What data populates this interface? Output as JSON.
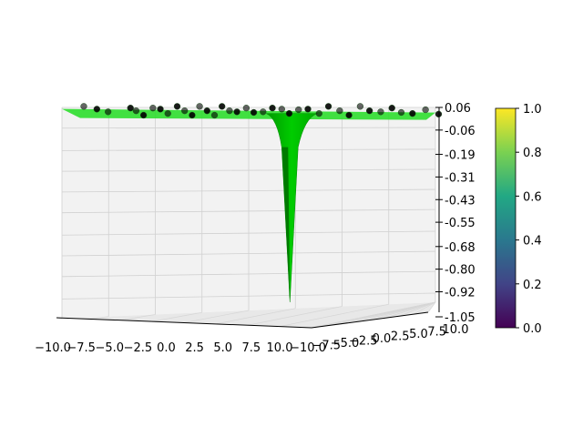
{
  "chart_data": {
    "type": "surface3d",
    "title": "",
    "xlabel": "",
    "ylabel": "",
    "zlabel": "",
    "x_range": [
      -10,
      10
    ],
    "y_range": [
      -10,
      10
    ],
    "z_range": [
      -1.05,
      0.06
    ],
    "x_ticks": [
      "−10.0",
      "−7.5",
      "−5.0",
      "−2.5",
      "0.0",
      "2.5",
      "5.0",
      "7.5",
      "10.0"
    ],
    "y_ticks": [
      "−10.0",
      "−7.5",
      "−5.0",
      "−2.5",
      "0.0",
      "2.5",
      "5.0",
      "7.5",
      "10.0"
    ],
    "z_ticks": [
      "0.06",
      "-0.06",
      "-0.19",
      "-0.31",
      "-0.43",
      "-0.55",
      "-0.68",
      "-0.80",
      "-0.92",
      "-1.05"
    ],
    "surface_color": "#00cc00",
    "scatter_color": "#000000",
    "grid": true,
    "surface_minimum": {
      "x": 2.5,
      "y": 0.0,
      "z": -1.05
    },
    "scatter_points": [
      {
        "x": -10.0,
        "z": 0.05
      },
      {
        "x": -9.3,
        "z": 0.05
      },
      {
        "x": -8.7,
        "z": 0.05
      },
      {
        "x": -7.5,
        "z": 0.04
      },
      {
        "x": -7.2,
        "z": 0.04
      },
      {
        "x": -6.8,
        "z": 0.03
      },
      {
        "x": -6.3,
        "z": 0.04
      },
      {
        "x": -5.9,
        "z": 0.05
      },
      {
        "x": -5.5,
        "z": 0.04
      },
      {
        "x": -5.0,
        "z": 0.05
      },
      {
        "x": -4.6,
        "z": 0.04
      },
      {
        "x": -4.2,
        "z": 0.03
      },
      {
        "x": -3.8,
        "z": 0.05
      },
      {
        "x": -3.4,
        "z": 0.04
      },
      {
        "x": -3.0,
        "z": 0.03
      },
      {
        "x": -2.6,
        "z": 0.05
      },
      {
        "x": -2.2,
        "z": 0.04
      },
      {
        "x": -1.8,
        "z": 0.05
      },
      {
        "x": -1.3,
        "z": 0.04
      },
      {
        "x": -0.9,
        "z": 0.03
      },
      {
        "x": -0.4,
        "z": 0.05
      },
      {
        "x": 0.1,
        "z": 0.04
      },
      {
        "x": 0.6,
        "z": 0.05
      },
      {
        "x": 1.0,
        "z": 0.04
      },
      {
        "x": 1.5,
        "z": 0.03
      },
      {
        "x": 2.0,
        "z": 0.05
      },
      {
        "x": 2.6,
        "z": 0.04
      },
      {
        "x": 3.1,
        "z": 0.05
      },
      {
        "x": 3.7,
        "z": 0.04
      },
      {
        "x": 4.2,
        "z": 0.03
      },
      {
        "x": 4.8,
        "z": 0.05
      },
      {
        "x": 5.3,
        "z": 0.04
      },
      {
        "x": 5.9,
        "z": 0.05
      },
      {
        "x": 6.5,
        "z": 0.04
      },
      {
        "x": 7.0,
        "z": 0.03
      },
      {
        "x": 7.6,
        "z": 0.04
      },
      {
        "x": 8.3,
        "z": 0.03
      },
      {
        "x": 9.0,
        "z": 0.02
      }
    ],
    "colorbar": {
      "colormap": "viridis",
      "range": [
        0.0,
        1.0
      ],
      "ticks": [
        "0.0",
        "0.2",
        "0.4",
        "0.6",
        "0.8",
        "1.0"
      ],
      "colors": [
        "#440154",
        "#414487",
        "#2a788e",
        "#22a884",
        "#7ad151",
        "#fde725"
      ]
    }
  }
}
